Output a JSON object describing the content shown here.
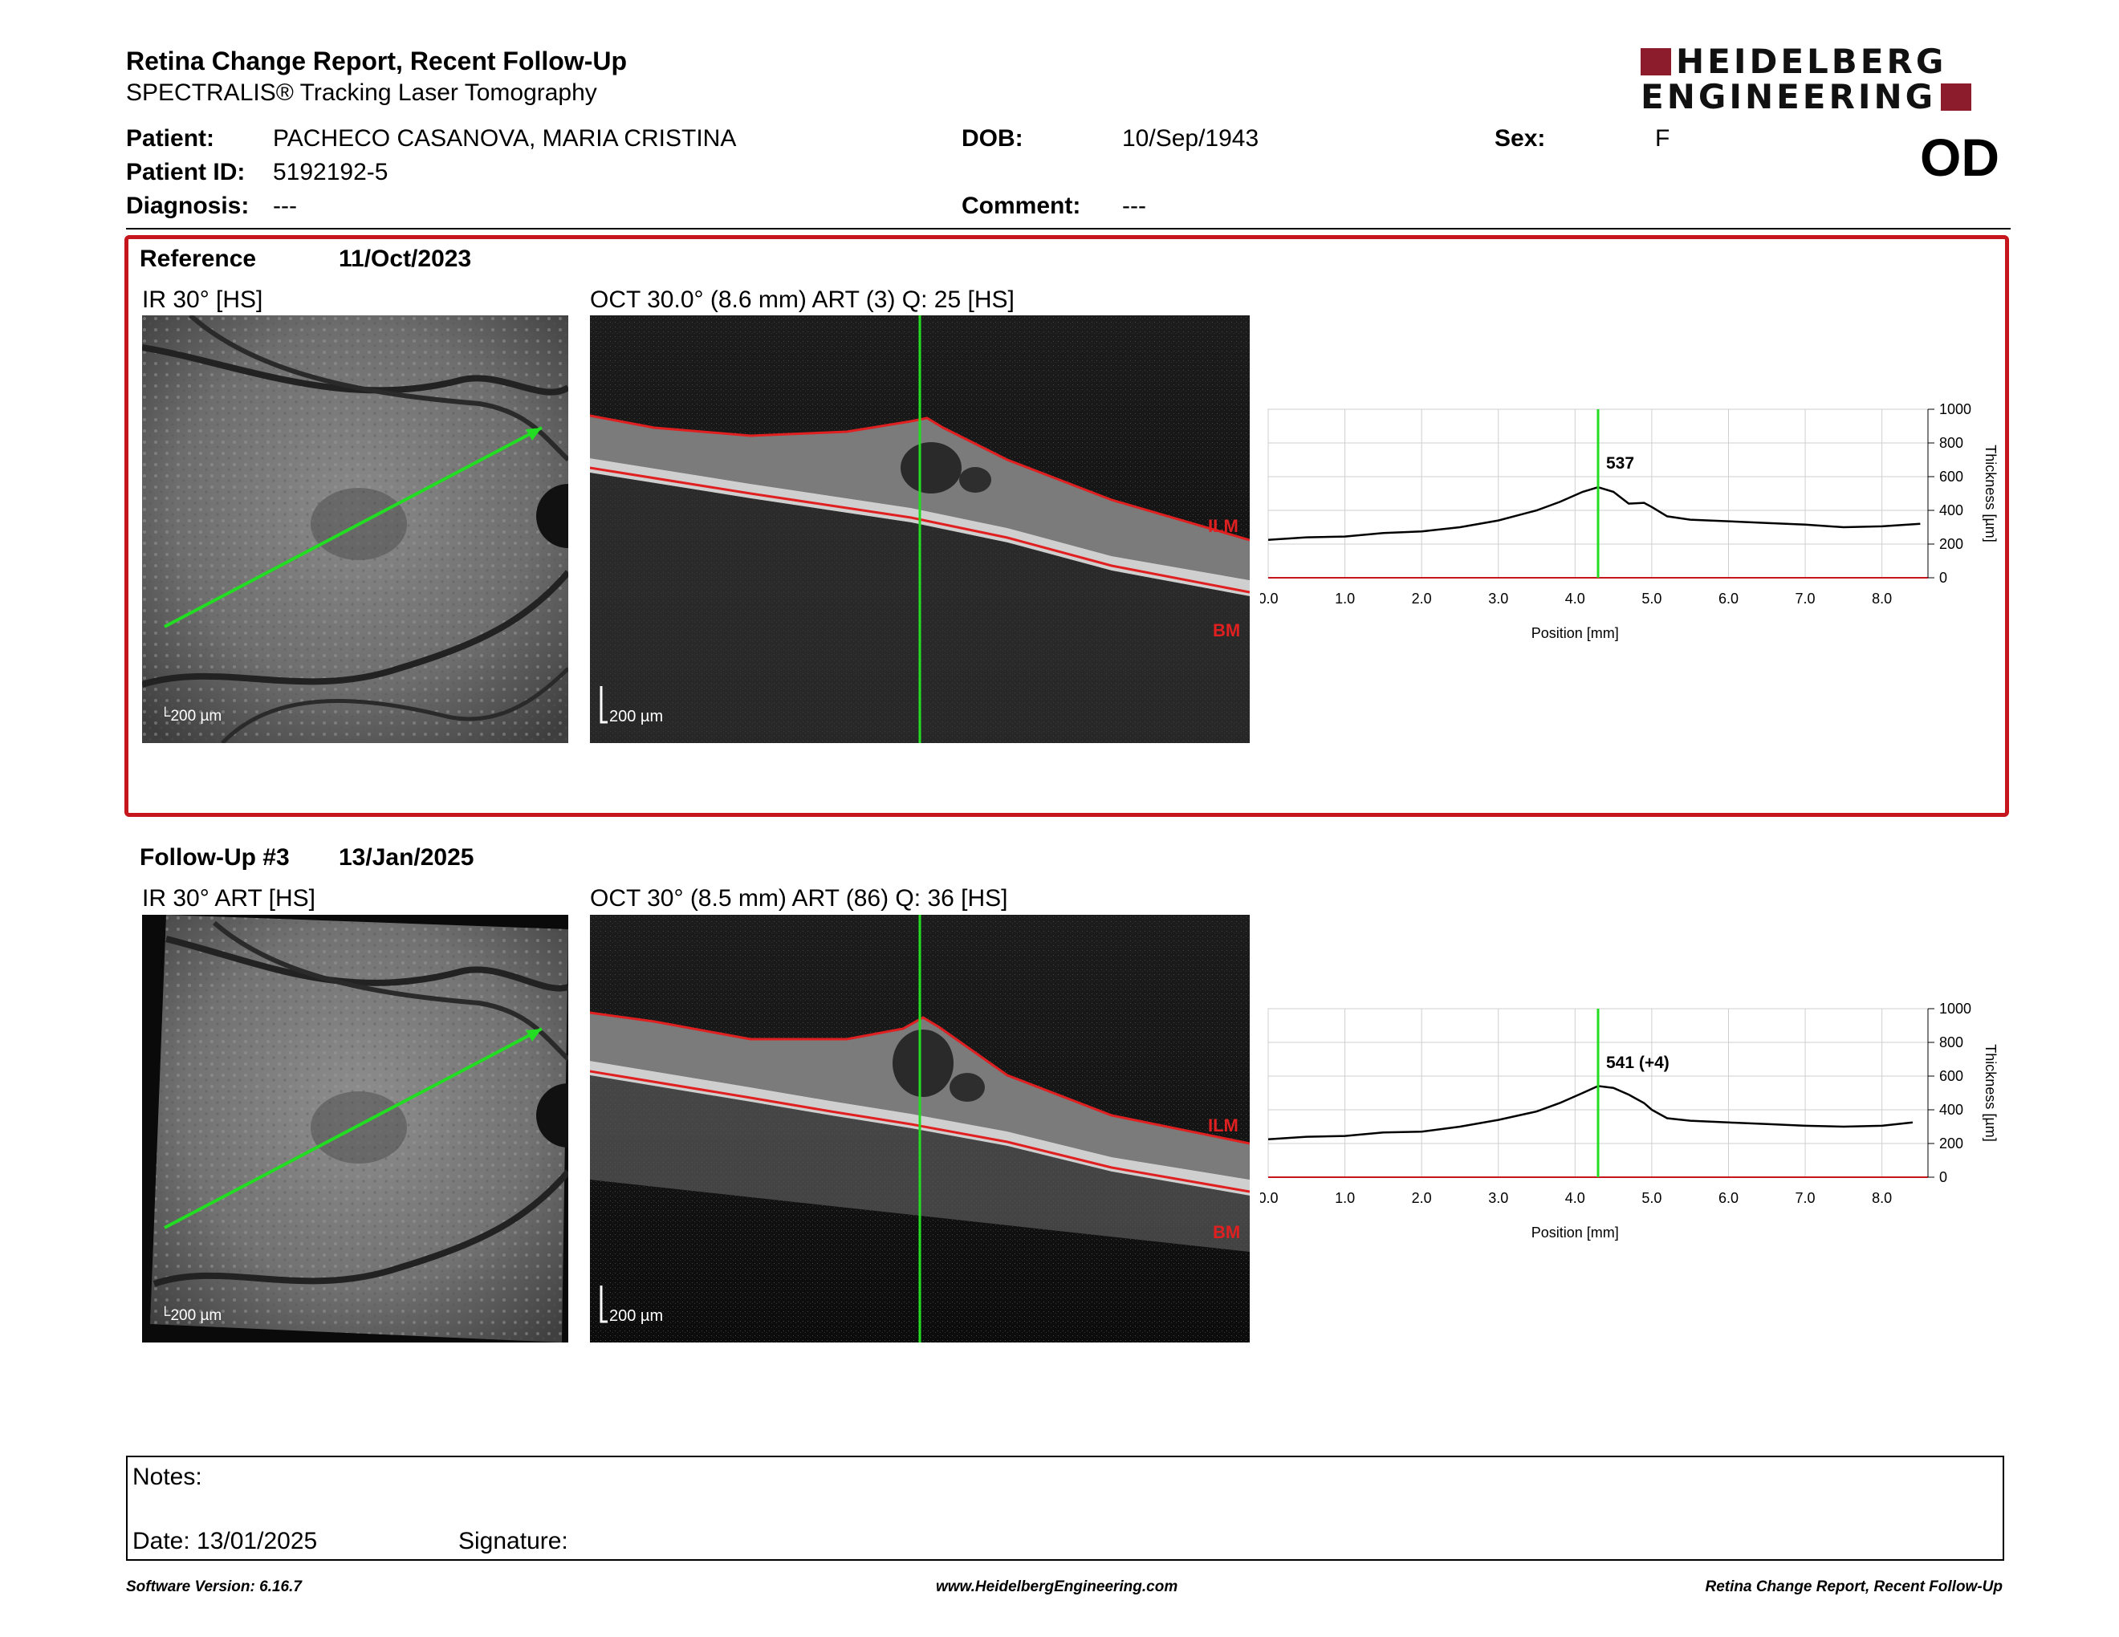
{
  "header": {
    "title": "Retina Change Report, Recent Follow-Up",
    "subtitle": "SPECTRALIS® Tracking Laser Tomography",
    "logo_line1": "HEIDELBERG",
    "logo_line2": "ENGINEERING",
    "logo_color": "#8c1c2c"
  },
  "patient": {
    "patient_label": "Patient:",
    "patient_value": "PACHECO CASANOVA, MARIA CRISTINA",
    "id_label": "Patient ID:",
    "id_value": "5192192-5",
    "diagnosis_label": "Diagnosis:",
    "diagnosis_value": "---",
    "dob_label": "DOB:",
    "dob_value": "10/Sep/1943",
    "comment_label": "Comment:",
    "comment_value": "---",
    "sex_label": "Sex:",
    "sex_value": "F",
    "eye": "OD"
  },
  "reference": {
    "label": "Reference",
    "date": "11/Oct/2023",
    "ir_title": "IR 30° [HS]",
    "oct_title": "OCT 30.0° (8.6 mm) ART (3) Q: 25 [HS]",
    "scale": "200 µm",
    "ilm": "ILM",
    "bm": "BM",
    "highlight_color": "#c4161c"
  },
  "followup": {
    "label": "Follow-Up #3",
    "date": "13/Jan/2025",
    "ir_title": "IR 30° ART [HS]",
    "oct_title": "OCT 30° (8.5 mm) ART (86) Q: 36 [HS]",
    "scale": "200 µm",
    "ilm": "ILM",
    "bm": "BM"
  },
  "chart_data": [
    {
      "type": "line",
      "xlabel": "Position [mm]",
      "ylabel": "Thickness [µm]",
      "xlim": [
        0,
        8.6
      ],
      "ylim": [
        0,
        1000
      ],
      "x_ticks": [
        "0.0",
        "1.0",
        "2.0",
        "3.0",
        "4.0",
        "5.0",
        "6.0",
        "7.0",
        "8.0"
      ],
      "y_ticks": [
        "0",
        "200",
        "400",
        "600",
        "800",
        "1000"
      ],
      "marker_x": 4.3,
      "marker_label": "537",
      "grid": true,
      "series": [
        {
          "x": [
            0,
            0.5,
            1.0,
            1.5,
            2.0,
            2.5,
            3.0,
            3.5,
            3.8,
            4.1,
            4.3,
            4.5,
            4.7,
            4.9,
            5.0,
            5.2,
            5.5,
            6.0,
            6.5,
            7.0,
            7.5,
            8.0,
            8.5
          ],
          "values": [
            225,
            240,
            245,
            265,
            275,
            300,
            340,
            400,
            450,
            510,
            537,
            510,
            440,
            445,
            420,
            365,
            345,
            335,
            325,
            315,
            300,
            305,
            320
          ]
        }
      ]
    },
    {
      "type": "line",
      "xlabel": "Position [mm]",
      "ylabel": "Thickness [µm]",
      "xlim": [
        0,
        8.6
      ],
      "ylim": [
        0,
        1000
      ],
      "x_ticks": [
        "0.0",
        "1.0",
        "2.0",
        "3.0",
        "4.0",
        "5.0",
        "6.0",
        "7.0",
        "8.0"
      ],
      "y_ticks": [
        "0",
        "200",
        "400",
        "600",
        "800",
        "1000"
      ],
      "marker_x": 4.3,
      "marker_label": "541 (+4)",
      "grid": true,
      "series": [
        {
          "x": [
            0,
            0.5,
            1.0,
            1.5,
            2.0,
            2.5,
            3.0,
            3.5,
            3.8,
            4.1,
            4.3,
            4.5,
            4.7,
            4.9,
            5.0,
            5.2,
            5.5,
            6.0,
            6.5,
            7.0,
            7.5,
            8.0,
            8.4
          ],
          "values": [
            225,
            240,
            245,
            265,
            270,
            300,
            340,
            390,
            440,
            500,
            541,
            530,
            490,
            440,
            400,
            350,
            335,
            325,
            315,
            305,
            300,
            305,
            325
          ]
        }
      ]
    }
  ],
  "notes": {
    "notes_label": "Notes:",
    "date_text": "Date: 13/01/2025",
    "signature_label": "Signature:"
  },
  "footer": {
    "software": "Software Version: 6.16.7",
    "website": "www.HeidelbergEngineering.com",
    "report_name": "Retina Change Report, Recent Follow-Up"
  }
}
